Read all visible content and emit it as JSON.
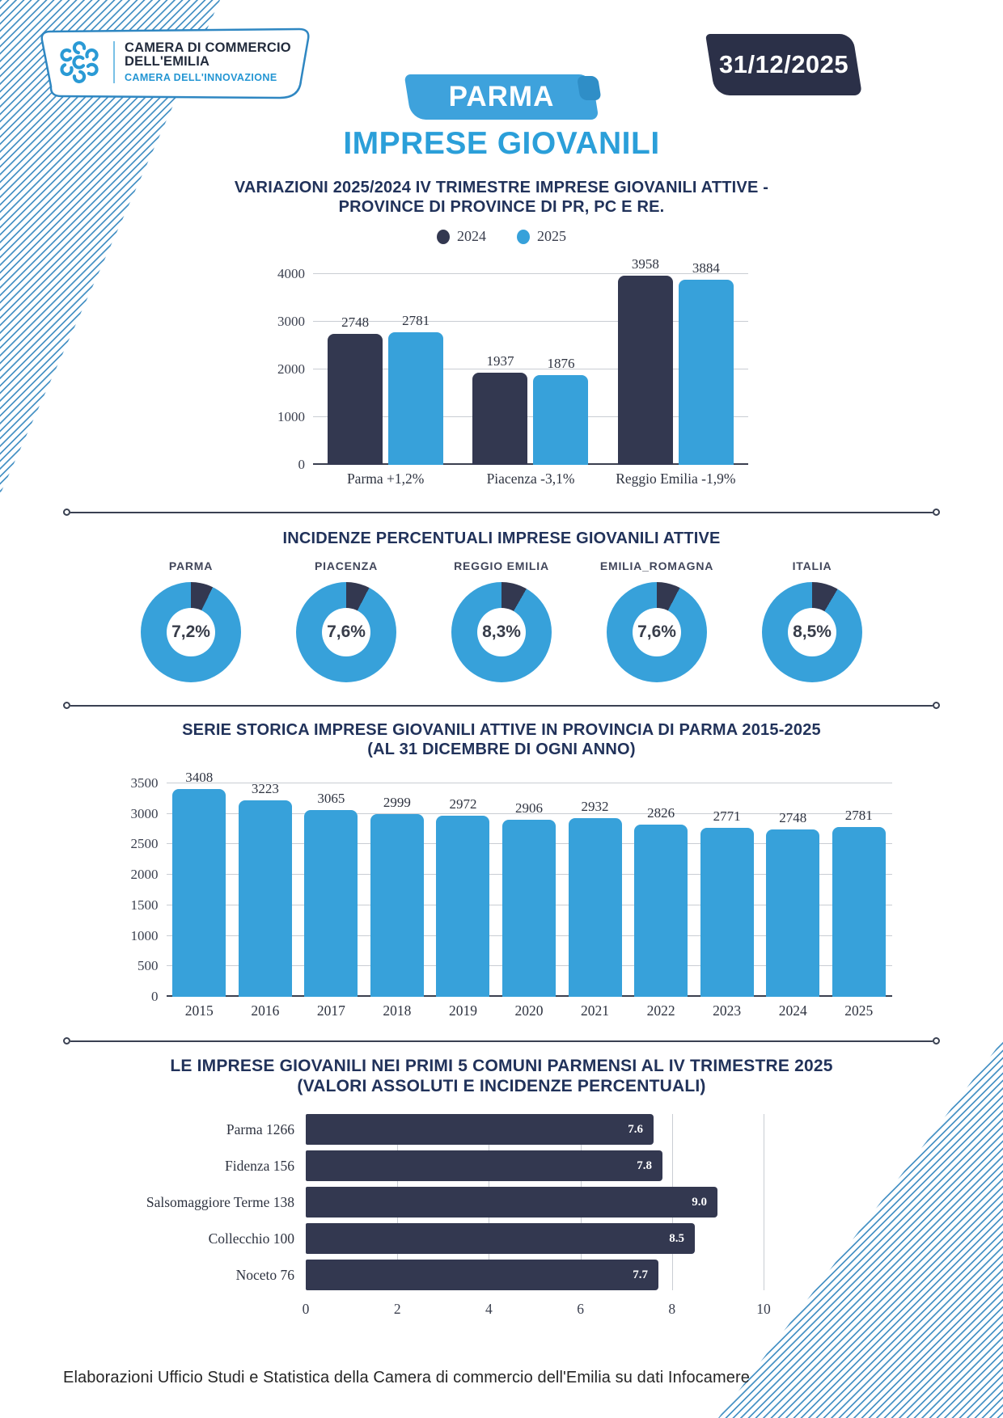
{
  "header": {
    "logo": {
      "line1": "CAMERA DI COMMERCIO",
      "line2": "DELL'EMILIA",
      "line3": "CAMERA DELL'INNOVAZIONE"
    },
    "date_badge": "31/12/2025",
    "region_badge": "PARMA",
    "subtitle": "IMPRESE GIOVANILI"
  },
  "colors": {
    "blue": "#37A1DA",
    "dark_navy": "#333850",
    "badge_navy": "#2B3048",
    "badge_blue": "#3EA2DC",
    "title_navy": "#21325A",
    "grid": "#C9CDD3",
    "stripe_blue": "#4A94C6"
  },
  "footer_text": "Elaborazioni Ufficio Studi e Statistica della Camera di commercio dell'Emilia su dati Infocamere",
  "chart_data": [
    {
      "id": "variazioni",
      "type": "bar",
      "title_line1": "VARIAZIONI 2025/2024 IV TRIMESTRE IMPRESE GIOVANILI ATTIVE -",
      "title_line2": "PROVINCE DI PROVINCE DI PR, PC E RE.",
      "legend": [
        "2024",
        "2025"
      ],
      "legend_position": "top",
      "grid": true,
      "categories": [
        "Parma +1,2%",
        "Piacenza -3,1%",
        "Reggio Emilia -1,9%"
      ],
      "series": [
        {
          "name": "2024",
          "values": [
            2748,
            1937,
            3958
          ]
        },
        {
          "name": "2025",
          "values": [
            2781,
            1876,
            3884
          ]
        }
      ],
      "ylim": [
        0,
        4000
      ],
      "yticks": [
        0,
        1000,
        2000,
        3000,
        4000
      ]
    },
    {
      "id": "incidenze",
      "type": "pie",
      "title": "INCIDENZE PERCENTUALI IMPRESE GIOVANILI ATTIVE",
      "donuts": [
        {
          "label": "PARMA",
          "value": 7.2,
          "display": "7,2%"
        },
        {
          "label": "PIACENZA",
          "value": 7.6,
          "display": "7,6%"
        },
        {
          "label": "REGGIO EMILIA",
          "value": 8.3,
          "display": "8,3%"
        },
        {
          "label": "EMILIA_ROMAGNA",
          "value": 7.6,
          "display": "7,6%"
        },
        {
          "label": "ITALIA",
          "value": 8.5,
          "display": "8,5%"
        }
      ]
    },
    {
      "id": "serie_storica",
      "type": "bar",
      "title_line1": "SERIE STORICA IMPRESE GIOVANILI ATTIVE IN PROVINCIA DI PARMA 2015-2025",
      "title_line2": "(AL 31 DICEMBRE DI OGNI ANNO)",
      "categories": [
        "2015",
        "2016",
        "2017",
        "2018",
        "2019",
        "2020",
        "2021",
        "2022",
        "2023",
        "2024",
        "2025"
      ],
      "values": [
        3408,
        3223,
        3065,
        2999,
        2972,
        2906,
        2932,
        2826,
        2771,
        2748,
        2781
      ],
      "ylim": [
        0,
        3500
      ],
      "yticks": [
        0,
        500,
        1000,
        1500,
        2000,
        2500,
        3000,
        3500
      ],
      "grid": true
    },
    {
      "id": "comuni",
      "type": "bar",
      "orientation": "horizontal",
      "title_line1": "LE IMPRESE GIOVANILI NEI PRIMI 5 COMUNI PARMENSI AL IV TRIMESTRE 2025",
      "title_line2": "(VALORI ASSOLUTI E INCIDENZE PERCENTUALI)",
      "categories": [
        "Parma 1266",
        "Fidenza 156",
        "Salsomaggiore Terme 138",
        "Collecchio 100",
        "Noceto 76"
      ],
      "values": [
        7.6,
        7.8,
        9.0,
        8.5,
        7.7
      ],
      "value_labels": [
        "7.6",
        "7.8",
        "9.0",
        "8.5",
        "7.7"
      ],
      "xlim": [
        0,
        10
      ],
      "xticks": [
        0,
        2,
        4,
        6,
        8,
        10
      ]
    }
  ]
}
